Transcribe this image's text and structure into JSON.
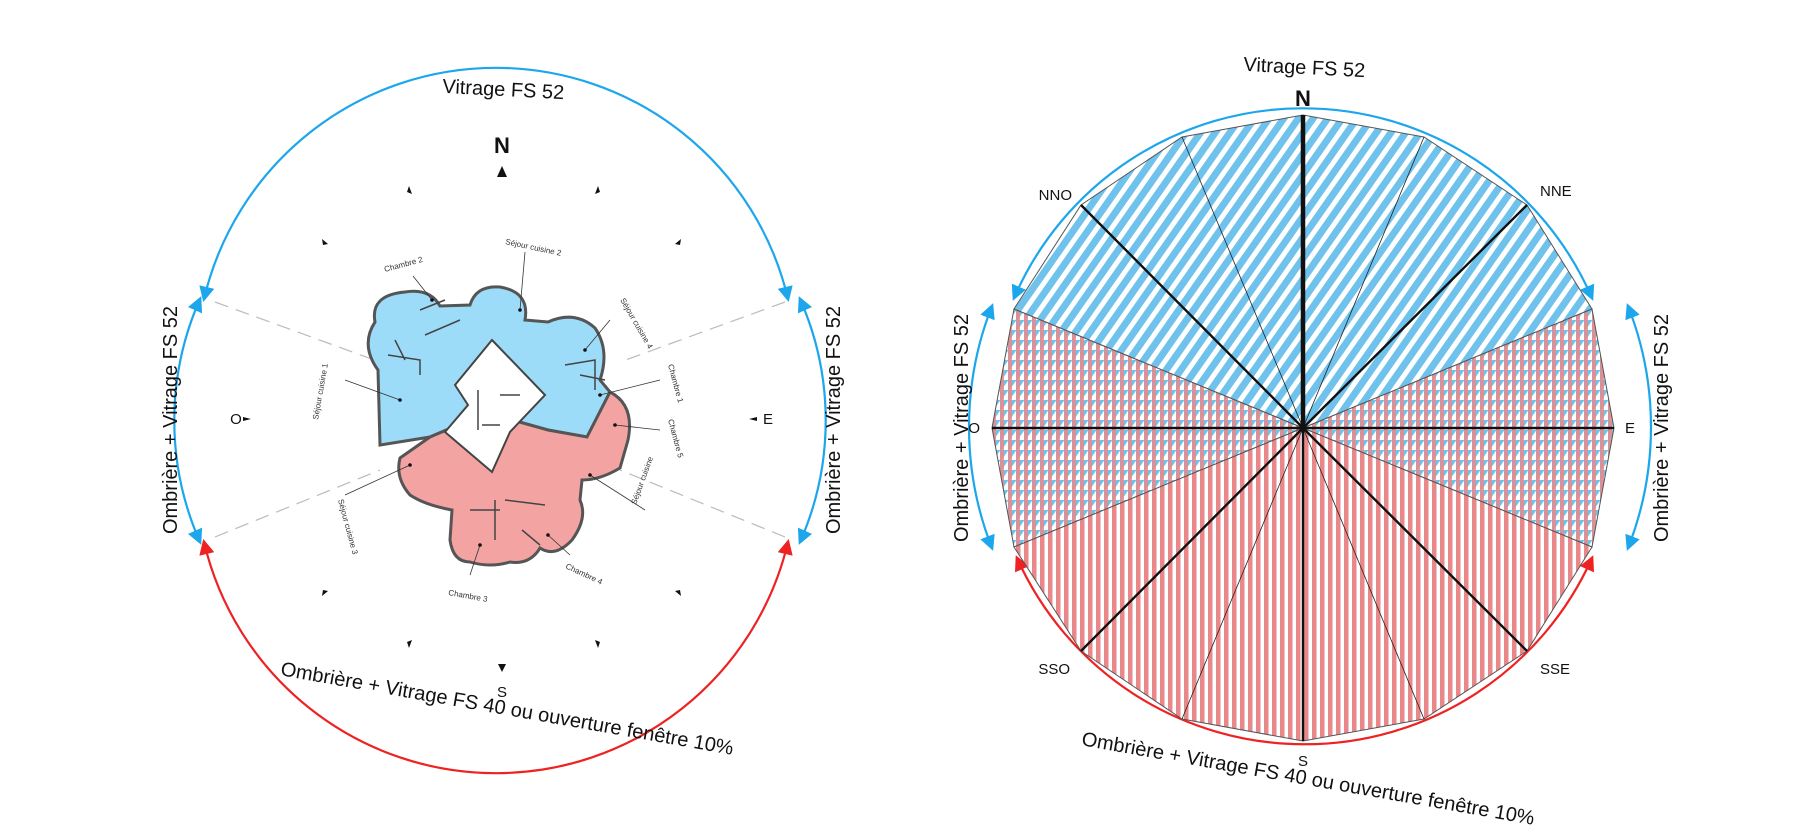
{
  "colors": {
    "north_zone": "#5bb8ea",
    "north_fill": "#9ddcf9",
    "south_zone": "#e84040",
    "south_fill": "#f4a3a3",
    "stripe_blue": "#6fc2ec",
    "stripe_red": "#e9888a",
    "arc_blue": "#1ca6ec",
    "arc_red": "#ee2222"
  },
  "left_diagram": {
    "labels": {
      "top": "Vitrage FS 52",
      "left": "Ombrière + Vitrage FS 52",
      "right": "Ombrière + Vitrage FS 52",
      "bottom": "Ombrière + Vitrage FS 40 ou ouverture fenêtre 10%"
    },
    "compass": {
      "n": "N",
      "s": "S",
      "e": "E",
      "o": "O"
    },
    "rooms": [
      "Chambre 2",
      "Séjour cuisine 2",
      "Séjour cuisine 4",
      "Chambre 1",
      "Séjour cuisine 1",
      "Chambre 5",
      "Séjour cuisine",
      "Séjour cuisine 3",
      "Chambre 4",
      "Chambre 3"
    ]
  },
  "right_diagram": {
    "labels": {
      "top": "Vitrage FS 52",
      "left": "Ombrière + Vitrage FS 52",
      "right": "Ombrière + Vitrage FS 52",
      "bottom": "Ombrière + Vitrage FS 40 ou ouverture fenêtre 10%"
    },
    "directions": {
      "n": "N",
      "nne": "NNE",
      "e": "E",
      "sse": "SSE",
      "s": "S",
      "sso": "SSO",
      "o": "O",
      "nno": "NNO"
    }
  }
}
